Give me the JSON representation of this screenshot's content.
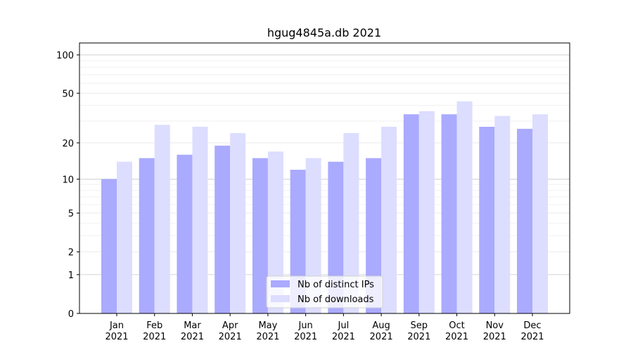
{
  "chart_data": {
    "type": "bar",
    "title": "hgug4845a.db 2021",
    "xlabel": "",
    "ylabel": "",
    "yscale": "log10(1+y)",
    "ylim": [
      0,
      124
    ],
    "yticks": [
      0,
      1,
      2,
      5,
      10,
      20,
      50,
      100
    ],
    "grid": true,
    "legend_placement": "bottom-center",
    "categories": [
      "Jan\n2021",
      "Feb\n2021",
      "Mar\n2021",
      "Apr\n2021",
      "May\n2021",
      "Jun\n2021",
      "Jul\n2021",
      "Aug\n2021",
      "Sep\n2021",
      "Oct\n2021",
      "Nov\n2021",
      "Dec\n2021"
    ],
    "series": [
      {
        "name": "Nb of distinct IPs",
        "color": "#aaaaff",
        "values": [
          10,
          15,
          16,
          19,
          15,
          12,
          14,
          15,
          34,
          34,
          27,
          26
        ]
      },
      {
        "name": "Nb of downloads",
        "color": "#ddddff",
        "values": [
          14,
          28,
          27,
          24,
          17,
          15,
          24,
          27,
          36,
          43,
          33,
          34
        ]
      }
    ]
  }
}
